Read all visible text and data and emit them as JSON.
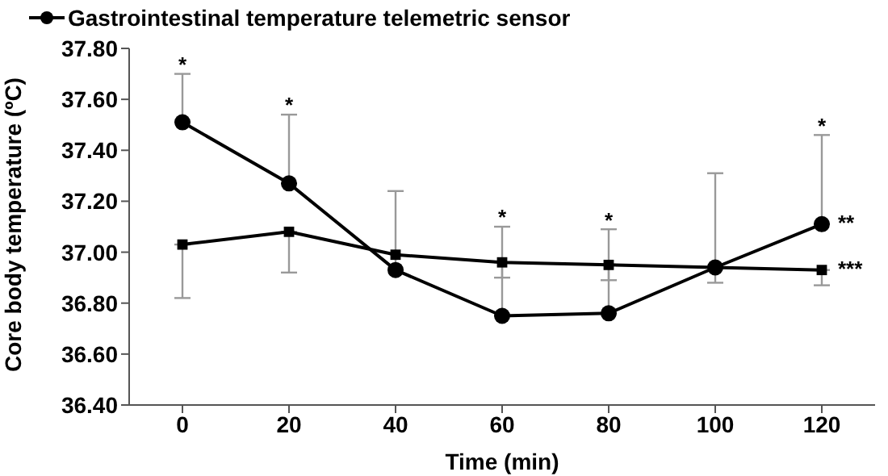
{
  "chart_data": {
    "type": "line",
    "xlabel": "Time (min)",
    "ylabel": "Core body temperature (ºC)",
    "x": [
      0,
      20,
      40,
      60,
      80,
      100,
      120
    ],
    "series": [
      {
        "name": "Gastrointestinal temperature telemetric sensor",
        "color": "#000000",
        "marker": "circle",
        "values": [
          37.51,
          37.27,
          36.93,
          36.75,
          36.76,
          36.94,
          37.11
        ],
        "errors": [
          [
            37.51,
            37.7
          ],
          [
            37.27,
            37.54
          ],
          [
            36.93,
            37.24
          ],
          [
            36.75,
            37.1
          ],
          [
            36.76,
            37.09
          ],
          [
            36.94,
            37.31
          ],
          [
            37.11,
            37.46
          ]
        ]
      },
      {
        "color": "#000000",
        "marker": "square",
        "values": [
          37.03,
          37.08,
          36.99,
          36.96,
          36.95,
          36.94,
          36.93
        ],
        "errors": [
          [
            36.82,
            37.03
          ],
          [
            36.92,
            37.08
          ],
          null,
          [
            36.9,
            36.96
          ],
          [
            36.89,
            36.95
          ],
          [
            36.88,
            36.94
          ],
          [
            36.87,
            36.93
          ]
        ]
      }
    ],
    "xlim": [
      -10,
      130
    ],
    "xticks": [
      0,
      20,
      40,
      60,
      80,
      100,
      120
    ],
    "ylim": [
      36.4,
      37.8
    ],
    "yticks": [
      {
        "value": 36.4,
        "label": "36.40"
      },
      {
        "value": 36.6,
        "label": "36.60"
      },
      {
        "value": 36.8,
        "label": "36.80"
      },
      {
        "value": 37.0,
        "label": "37.00"
      },
      {
        "value": 37.2,
        "label": "37.20"
      },
      {
        "value": 37.4,
        "label": "37.40"
      },
      {
        "value": 37.6,
        "label": "37.60"
      },
      {
        "value": 37.8,
        "label": "37.80"
      }
    ],
    "grid": false,
    "legend": "top",
    "annotations": [
      {
        "text": "*",
        "x": 0,
        "y": 37.73
      },
      {
        "text": "*",
        "x": 20,
        "y": 37.57
      },
      {
        "text": "*",
        "x": 60,
        "y": 37.13
      },
      {
        "text": "*",
        "x": 80,
        "y": 37.12
      },
      {
        "text": "*",
        "x": 120,
        "y": 37.49
      },
      "**",
      "***"
    ]
  }
}
